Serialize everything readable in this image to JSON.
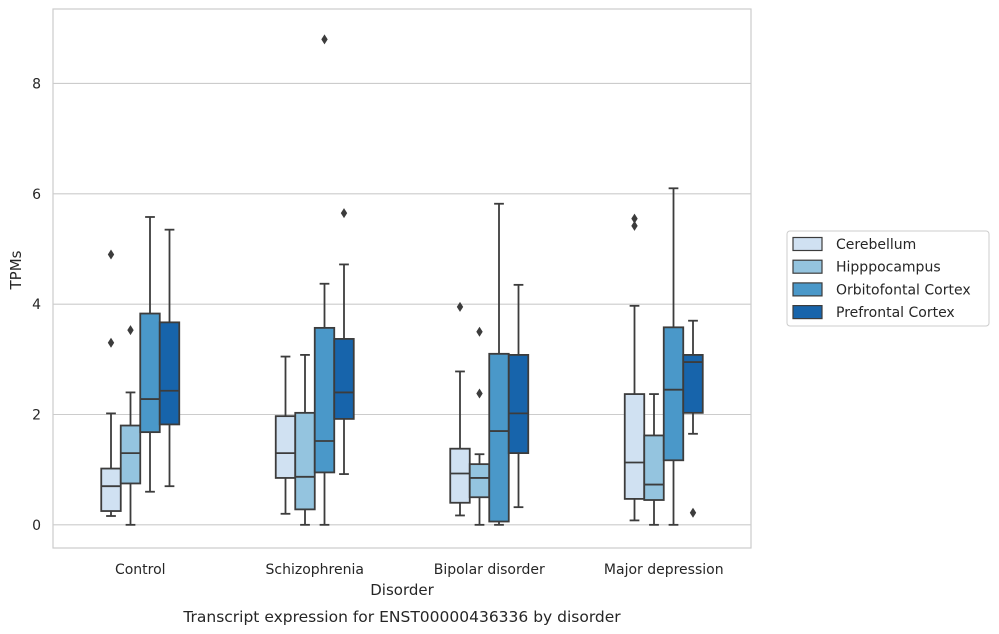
{
  "chart_data": {
    "type": "boxplot",
    "xlabel": "Disorder",
    "ylabel": "TPMs",
    "caption": "Transcript expression for ENST00000436336 by disorder",
    "ylim": [
      -0.42,
      9.35
    ],
    "yticks": [
      0,
      2,
      4,
      6,
      8
    ],
    "grid": "horizontal",
    "legend_position": "right",
    "categories": [
      "Control",
      "Schizophrenia",
      "Bipolar disorder",
      "Major depression"
    ],
    "series": [
      {
        "name": "Cerebellum",
        "color": "#d0e1f2",
        "boxes": [
          {
            "whislo": 0.16,
            "q1": 0.25,
            "med": 0.7,
            "q3": 1.02,
            "whishi": 2.02,
            "fliers": [
              3.3,
              4.9
            ]
          },
          {
            "whislo": 0.2,
            "q1": 0.85,
            "med": 1.3,
            "q3": 1.97,
            "whishi": 3.05,
            "fliers": []
          },
          {
            "whislo": 0.17,
            "q1": 0.4,
            "med": 0.93,
            "q3": 1.38,
            "whishi": 2.78,
            "fliers": [
              3.95
            ]
          },
          {
            "whislo": 0.08,
            "q1": 0.47,
            "med": 1.13,
            "q3": 2.37,
            "whishi": 3.97,
            "fliers": [
              5.42,
              5.55
            ]
          }
        ]
      },
      {
        "name": "Hipppocampus",
        "color": "#94c4df",
        "boxes": [
          {
            "whislo": 0.0,
            "q1": 0.75,
            "med": 1.3,
            "q3": 1.8,
            "whishi": 2.4,
            "fliers": [
              3.53
            ]
          },
          {
            "whislo": 0.0,
            "q1": 0.28,
            "med": 0.87,
            "q3": 2.03,
            "whishi": 3.08,
            "fliers": []
          },
          {
            "whislo": 0.0,
            "q1": 0.5,
            "med": 0.85,
            "q3": 1.1,
            "whishi": 1.28,
            "fliers": [
              2.38,
              3.5
            ]
          },
          {
            "whislo": 0.0,
            "q1": 0.45,
            "med": 0.73,
            "q3": 1.62,
            "whishi": 2.37,
            "fliers": []
          }
        ]
      },
      {
        "name": "Orbitofontal Cortex",
        "color": "#4a98c9",
        "boxes": [
          {
            "whislo": 0.6,
            "q1": 1.68,
            "med": 2.28,
            "q3": 3.83,
            "whishi": 5.58,
            "fliers": []
          },
          {
            "whislo": 0.0,
            "q1": 0.95,
            "med": 1.52,
            "q3": 3.57,
            "whishi": 4.37,
            "fliers": [
              8.8
            ]
          },
          {
            "whislo": 0.0,
            "q1": 0.06,
            "med": 1.7,
            "q3": 3.1,
            "whishi": 5.82,
            "fliers": []
          },
          {
            "whislo": 0.0,
            "q1": 1.17,
            "med": 2.45,
            "q3": 3.58,
            "whishi": 6.1,
            "fliers": []
          }
        ]
      },
      {
        "name": "Prefrontal Cortex",
        "color": "#1764ab",
        "boxes": [
          {
            "whislo": 0.7,
            "q1": 1.82,
            "med": 2.43,
            "q3": 3.67,
            "whishi": 5.35,
            "fliers": []
          },
          {
            "whislo": 0.92,
            "q1": 1.92,
            "med": 2.4,
            "q3": 3.37,
            "whishi": 4.72,
            "fliers": [
              5.65
            ]
          },
          {
            "whislo": 0.32,
            "q1": 1.3,
            "med": 2.02,
            "q3": 3.08,
            "whishi": 4.35,
            "fliers": []
          },
          {
            "whislo": 1.65,
            "q1": 2.03,
            "med": 2.95,
            "q3": 3.08,
            "whishi": 3.7,
            "fliers": [
              0.22
            ]
          }
        ]
      }
    ]
  }
}
